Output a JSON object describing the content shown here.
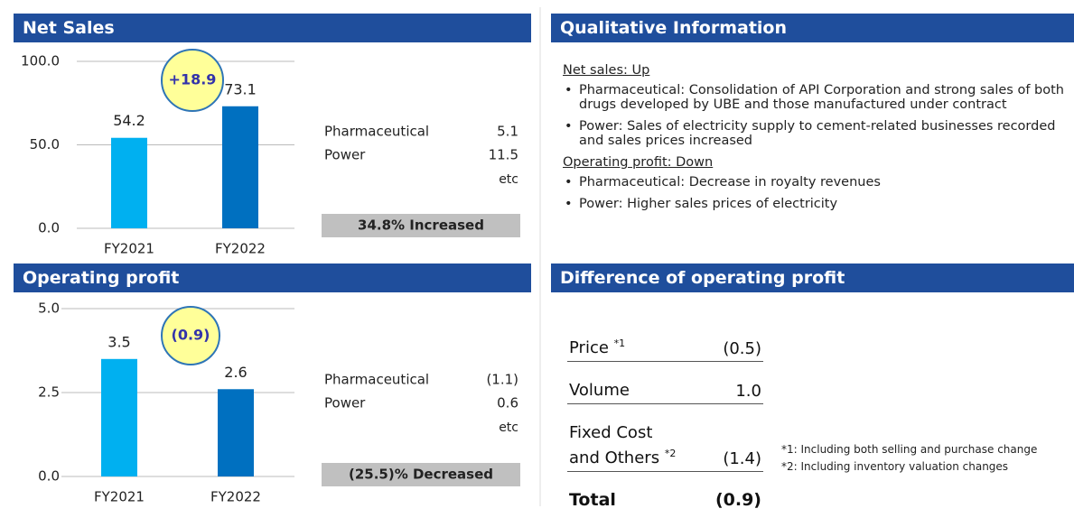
{
  "chart_data": [
    {
      "type": "bar",
      "title": "Net Sales",
      "categories": [
        "FY2021",
        "FY2022"
      ],
      "values": [
        54.2,
        73.1
      ],
      "colors": [
        "#00b0f0",
        "#0070c0"
      ],
      "ylim": [
        0,
        100
      ],
      "yticks": [
        {
          "value": 0,
          "label": "0.0"
        },
        {
          "value": 50,
          "label": "50.0"
        },
        {
          "value": 100,
          "label": "100.0"
        }
      ],
      "grid": true,
      "annotation": "+18.9",
      "breakdown": [
        {
          "label": "Pharmaceutical",
          "value": "5.1"
        },
        {
          "label": "Power",
          "value": "11.5"
        }
      ],
      "note": "etc",
      "summary": "34.8% Increased"
    },
    {
      "type": "bar",
      "title": "Operating profit",
      "categories": [
        "FY2021",
        "FY2022"
      ],
      "values": [
        3.5,
        2.6
      ],
      "colors": [
        "#00b0f0",
        "#0070c0"
      ],
      "ylim": [
        0,
        5
      ],
      "yticks": [
        {
          "value": 0,
          "label": "0.0"
        },
        {
          "value": 2.5,
          "label": "2.5"
        },
        {
          "value": 5,
          "label": "5.0"
        }
      ],
      "grid": true,
      "annotation": "(0.9)",
      "breakdown": [
        {
          "label": "Pharmaceutical",
          "value": "(1.1)"
        },
        {
          "label": "Power",
          "value": "0.6"
        }
      ],
      "note": "etc",
      "summary": "(25.5)% Decreased"
    }
  ],
  "qualitative": {
    "title": "Qualitative Information",
    "sections": [
      {
        "heading": "Net sales: Up",
        "bullets": [
          "Pharmaceutical: Consolidation of API Corporation and strong sales of both drugs developed by UBE and those manufactured under contract",
          "Power: Sales of electricity supply to cement-related businesses recorded and sales prices increased"
        ]
      },
      {
        "heading": "Operating profit: Down",
        "bullets": [
          "Pharmaceutical: Decrease in royalty revenues",
          "Power: Higher sales prices of electricity"
        ]
      }
    ]
  },
  "difference": {
    "title": "Difference of operating profit",
    "rows": [
      {
        "label": "Price",
        "sup": "*1",
        "value": "(0.5)"
      },
      {
        "label": "Volume",
        "value": "1.0"
      },
      {
        "label": "Fixed Cost and Others",
        "sup": "*2",
        "value": "(1.4)"
      }
    ],
    "total": {
      "label": "Total",
      "value": "(0.9)"
    },
    "footnotes": [
      "*1: Including both selling and  purchase change",
      "*2: Including inventory valuation changes"
    ]
  }
}
